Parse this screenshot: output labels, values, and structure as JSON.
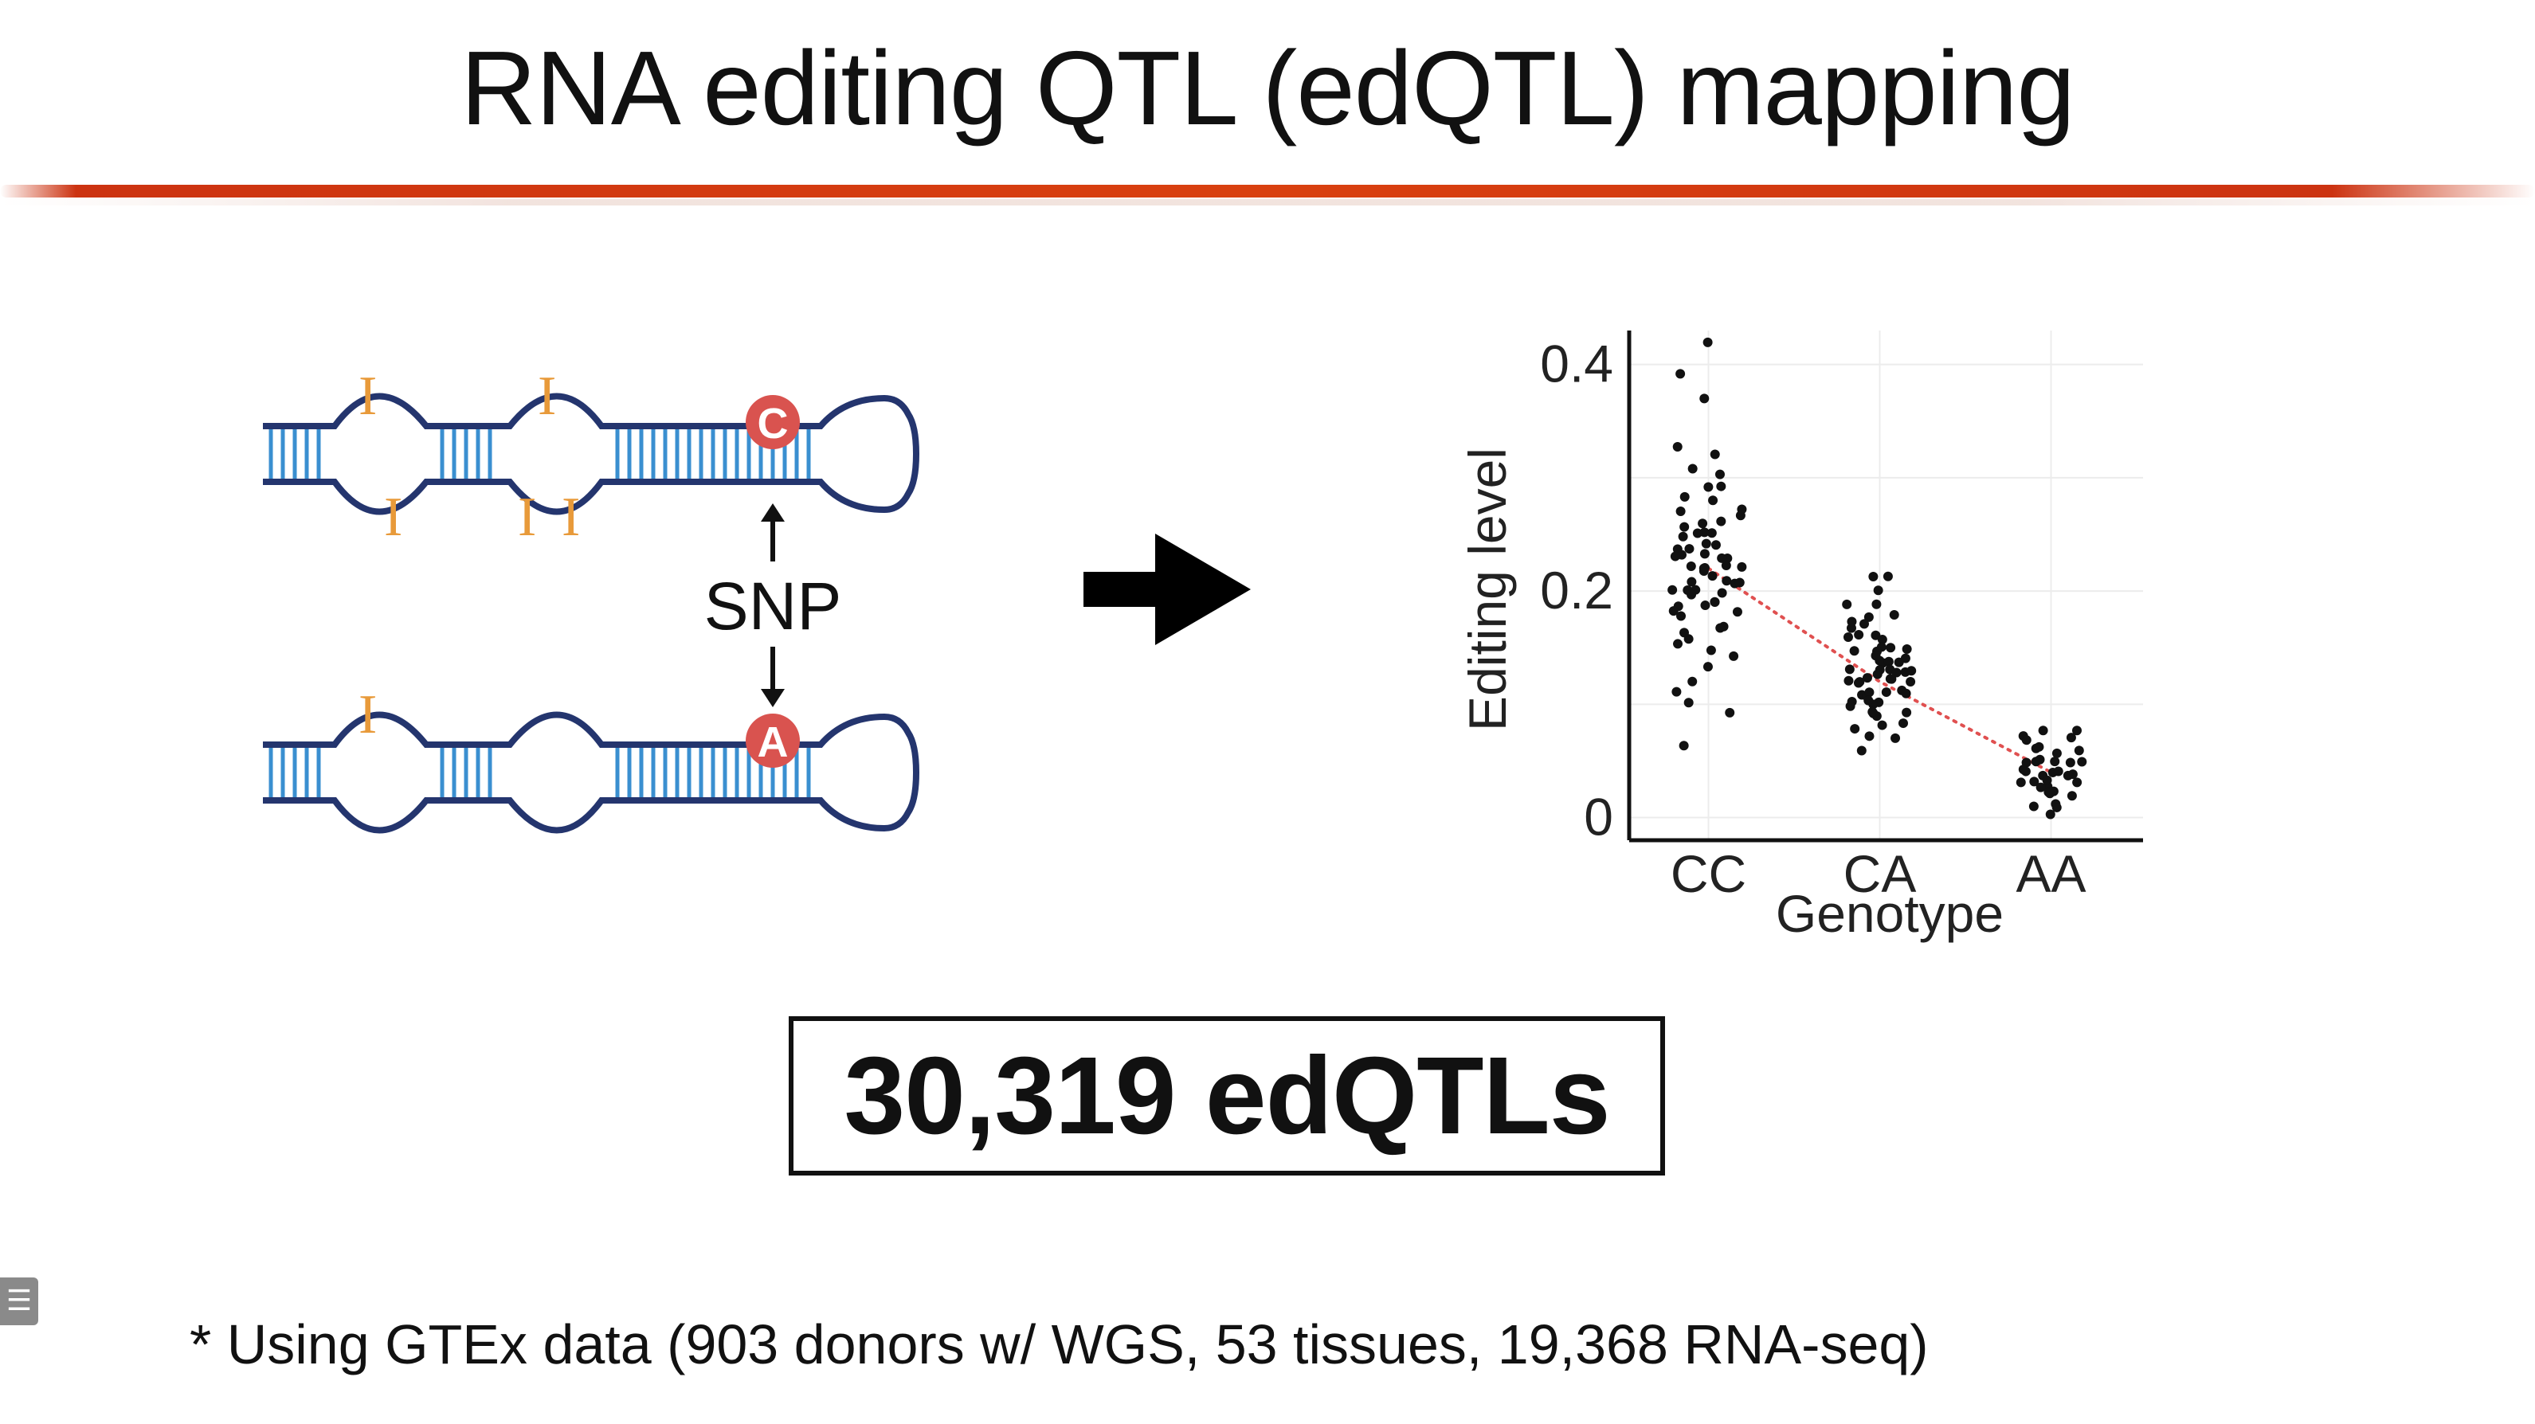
{
  "slide": {
    "title": "RNA editing QTL (edQTL) mapping",
    "count_box": "30,319 edQTLs",
    "footnote": "* Using GTEx data (903 donors w/ WGS, 53 tissues, 19,368 RNA-seq)",
    "accent_color": "#d9400f"
  },
  "diagram": {
    "snp_label": "SNP",
    "top_base": "C",
    "bottom_base": "A",
    "edit_mark": "I",
    "base_color": "#d9534f",
    "edit_color": "#e89a3a",
    "strand_color": "#24356e",
    "stem_color": "#3a8fd0"
  },
  "chart_data": {
    "type": "scatter",
    "title": "",
    "xlabel": "Genotype",
    "ylabel": "Editing level",
    "categories": [
      "CC",
      "CA",
      "AA"
    ],
    "yticks": [
      "0",
      "0.2",
      "0.4"
    ],
    "ylim": [
      -0.02,
      0.43
    ],
    "trend_line": {
      "style": "dotted",
      "color": "#e05050",
      "values": [
        0.22,
        0.12,
        0.04
      ]
    },
    "series": [
      {
        "category": "CC",
        "values": [
          0.42,
          0.39,
          0.37,
          0.33,
          0.32,
          0.31,
          0.3,
          0.29,
          0.29,
          0.28,
          0.28,
          0.27,
          0.27,
          0.27,
          0.26,
          0.26,
          0.26,
          0.25,
          0.25,
          0.25,
          0.25,
          0.24,
          0.24,
          0.24,
          0.24,
          0.23,
          0.23,
          0.23,
          0.23,
          0.23,
          0.22,
          0.22,
          0.22,
          0.22,
          0.22,
          0.22,
          0.21,
          0.21,
          0.21,
          0.21,
          0.21,
          0.2,
          0.2,
          0.2,
          0.2,
          0.2,
          0.19,
          0.19,
          0.19,
          0.19,
          0.18,
          0.18,
          0.18,
          0.17,
          0.17,
          0.16,
          0.16,
          0.15,
          0.15,
          0.14,
          0.13,
          0.12,
          0.11,
          0.1,
          0.09,
          0.06
        ]
      },
      {
        "category": "CA",
        "values": [
          0.21,
          0.21,
          0.2,
          0.19,
          0.19,
          0.18,
          0.18,
          0.17,
          0.17,
          0.17,
          0.16,
          0.16,
          0.16,
          0.16,
          0.15,
          0.15,
          0.15,
          0.15,
          0.15,
          0.14,
          0.14,
          0.14,
          0.14,
          0.14,
          0.14,
          0.13,
          0.13,
          0.13,
          0.13,
          0.13,
          0.13,
          0.13,
          0.12,
          0.12,
          0.12,
          0.12,
          0.12,
          0.12,
          0.12,
          0.11,
          0.11,
          0.11,
          0.11,
          0.11,
          0.11,
          0.1,
          0.1,
          0.1,
          0.1,
          0.1,
          0.09,
          0.09,
          0.09,
          0.09,
          0.08,
          0.08,
          0.08,
          0.07,
          0.07,
          0.06
        ]
      },
      {
        "category": "AA",
        "values": [
          0.08,
          0.08,
          0.07,
          0.07,
          0.07,
          0.06,
          0.06,
          0.06,
          0.06,
          0.05,
          0.05,
          0.05,
          0.05,
          0.05,
          0.05,
          0.04,
          0.04,
          0.04,
          0.04,
          0.04,
          0.04,
          0.04,
          0.03,
          0.03,
          0.03,
          0.03,
          0.03,
          0.03,
          0.02,
          0.02,
          0.02,
          0.02,
          0.01,
          0.01,
          0.01,
          0.0
        ]
      }
    ],
    "grid": true
  }
}
